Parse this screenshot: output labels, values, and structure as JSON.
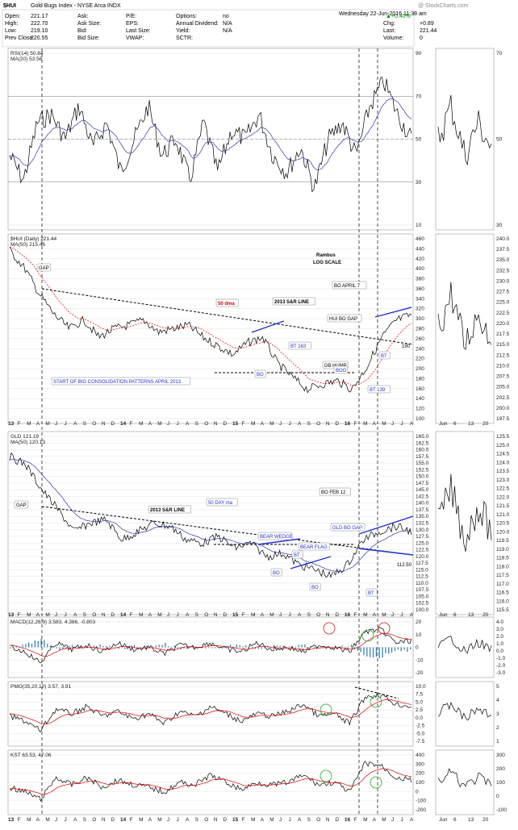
{
  "header": {
    "symbol": "$HUI",
    "name": "Gold Bugs Index - NYSE Arca INDX",
    "date": "Wednesday 22-Jun-2016 11:38 am",
    "watermark": "@ StockCharts.com",
    "change_pct": "▲+0.40%",
    "chg_label": "Chg:",
    "chg_value": "+0.89",
    "last_label": "Last:",
    "last_value": "221.44",
    "volume_label": "Volume:",
    "volume_value": "0",
    "quote_rows": [
      [
        [
          "Open:",
          "221.17"
        ],
        [
          "Ask:",
          ""
        ],
        [
          "P/E:",
          ""
        ],
        [
          "Options:",
          "no"
        ]
      ],
      [
        [
          "High:",
          "222.70"
        ],
        [
          "Ask Size:",
          ""
        ],
        [
          "EPS:",
          ""
        ],
        [
          "Annual Dividend:",
          "N/A"
        ]
      ],
      [
        [
          "Low:",
          "219.10"
        ],
        [
          "Bid:",
          ""
        ],
        [
          "Last Size:",
          ""
        ],
        [
          "Yield:",
          "N/A"
        ]
      ],
      [
        [
          "Prev Close:",
          "220.55"
        ],
        [
          "Bid Size:",
          ""
        ],
        [
          "VWAP:",
          ""
        ],
        [
          "SCTR:",
          ""
        ]
      ]
    ]
  },
  "panels": [
    {
      "id": "rsi",
      "legend": [
        "RSI(14) 50.84",
        "MA(20) 53.56"
      ],
      "ticks": [
        "90",
        "70",
        "50",
        "30",
        "10"
      ],
      "side_ticks": [
        "70",
        "50",
        "30"
      ]
    },
    {
      "id": "hui",
      "legend": [
        "$HUI (Daily) 221.44",
        "MA(50) 215.46"
      ],
      "ticks": [
        "460",
        "440",
        "420",
        "400",
        "380",
        "360",
        "340",
        "320",
        "300",
        "280",
        "260",
        "240",
        "220",
        "200",
        "180",
        "160",
        "140",
        "120",
        "100"
      ],
      "side_ticks": [
        "240.0",
        "237.5",
        "235.0",
        "232.5",
        "230.0",
        "227.5",
        "225.0",
        "222.5",
        "220.0",
        "217.5",
        "215.0",
        "212.5",
        "210.0",
        "207.5",
        "205.0",
        "202.5",
        "200.0",
        "197.5"
      ]
    },
    {
      "id": "gld",
      "legend": [
        "GLD 121.19",
        "MA(50) 120.13"
      ],
      "ticks": [
        "165.0",
        "162.5",
        "160.0",
        "157.5",
        "155.0",
        "152.5",
        "150.0",
        "147.5",
        "145.0",
        "142.5",
        "140.0",
        "137.5",
        "135.0",
        "132.5",
        "130.0",
        "127.5",
        "125.0",
        "122.5",
        "120.0",
        "117.5",
        "115.0",
        "112.5",
        "110.0",
        "107.5",
        "105.0",
        "102.5",
        "100.0"
      ],
      "side_ticks": [
        "125.5",
        "125.0",
        "124.5",
        "124.0",
        "123.5",
        "123.0",
        "122.5",
        "122.0",
        "121.5",
        "121.0",
        "120.5",
        "120.0",
        "119.5",
        "119.0",
        "118.5",
        "118.0",
        "117.5",
        "117.0",
        "116.5",
        "116.0",
        "115.5"
      ]
    },
    {
      "id": "macd",
      "legend": [
        "MACD(12,26,9) 3.583, 4.386, -0.803"
      ],
      "ticks": [
        "20",
        "10",
        "0",
        "-10",
        "-20"
      ],
      "side_ticks": [
        "4.0",
        "3.0",
        "2.0",
        "1.0",
        "0.0",
        "-1.0",
        "-2.0",
        "-3.0"
      ]
    },
    {
      "id": "pmo",
      "legend": [
        "PMO(35,20,10) 3.57, 3.91"
      ],
      "ticks": [
        "10.0",
        "7.5",
        "5.0",
        "2.5",
        "0.0",
        "-2.5",
        "-5.0",
        "-7.5"
      ],
      "side_ticks": [
        "5",
        "4",
        "3",
        "2",
        "1"
      ]
    },
    {
      "id": "kst",
      "legend": [
        "KST 63.53, 47.06"
      ],
      "ticks": [
        "400",
        "300",
        "200",
        "100",
        "0",
        "-100",
        "-200"
      ],
      "side_ticks": [
        "300",
        "200",
        "100",
        "0",
        "-100"
      ]
    }
  ],
  "xaxis": {
    "labels": [
      "13",
      "F",
      "M",
      "A",
      "M",
      "J",
      "J",
      "A",
      "S",
      "O",
      "N",
      "D",
      "14",
      "F",
      "M",
      "A",
      "M",
      "J",
      "J",
      "A",
      "S",
      "O",
      "N",
      "D",
      "15",
      "F",
      "M",
      "A",
      "M",
      "J",
      "J",
      "A",
      "S",
      "O",
      "N",
      "D",
      "16",
      "F",
      "M",
      "A",
      "M",
      "J",
      "J",
      "A"
    ],
    "side_labels": [
      "Jun",
      "6",
      "13",
      "20"
    ]
  },
  "annotations": {
    "rambus": "Rambus",
    "log_scale": "LOG SCALE",
    "gap": "GAP",
    "dma50": "50 dma",
    "sr_line": "2013 S&R LINE",
    "bo_april7": "BO APRIL 7",
    "hui_bo_gap": "HUI BO GAP",
    "bt163": "BT 163",
    "bo": "BO",
    "db_hump": "DB HUMP",
    "bog": "BOG",
    "bt139": "BT 139",
    "bt": "BT",
    "v190": "190",
    "start_consolidation": "START OF BIG CONSOLIDATION PATTERNS APRIL 2013",
    "gld_gap": "GAP",
    "gld_sr_line": "2013 S&R LINE",
    "gld_dma": "50 DAY ma",
    "bear_wedge": "BEAR WEDGE",
    "bear_flag": "BEAR FLAG",
    "gld_bo_gap": "GLD BO GAP",
    "bo_feb12": "BO FEB 12",
    "gld_bt": "BT",
    "gld_bo": "BO",
    "gld_bo2": "BO",
    "gld_bt2": "BT",
    "v112": "112.50",
    "pattern_s": "S",
    "pattern_h": "H"
  },
  "chart_data": {
    "type": "line",
    "title": "$HUI Gold Bugs Index - NYSE Arca INDX",
    "x": [
      "2013-01",
      "2013-04",
      "2013-07",
      "2013-10",
      "2014-01",
      "2014-04",
      "2014-07",
      "2014-10",
      "2015-01",
      "2015-04",
      "2015-07",
      "2015-10",
      "2016-01",
      "2016-04",
      "2016-06"
    ],
    "series": [
      {
        "name": "$HUI (Daily)",
        "values": [
          440,
          300,
          220,
          230,
          220,
          230,
          240,
          190,
          170,
          165,
          140,
          110,
          115,
          200,
          221.44
        ]
      },
      {
        "name": "GLD",
        "values": [
          160,
          150,
          125,
          127,
          117,
          125,
          125,
          117,
          117,
          115,
          110,
          106,
          107,
          120,
          121.19
        ]
      },
      {
        "name": "RSI(14)",
        "values": [
          50,
          20,
          60,
          45,
          55,
          60,
          55,
          30,
          45,
          50,
          25,
          40,
          55,
          75,
          50.84
        ]
      }
    ],
    "ylabel": "",
    "xlabel": "",
    "log_scale": true,
    "grid": true
  }
}
